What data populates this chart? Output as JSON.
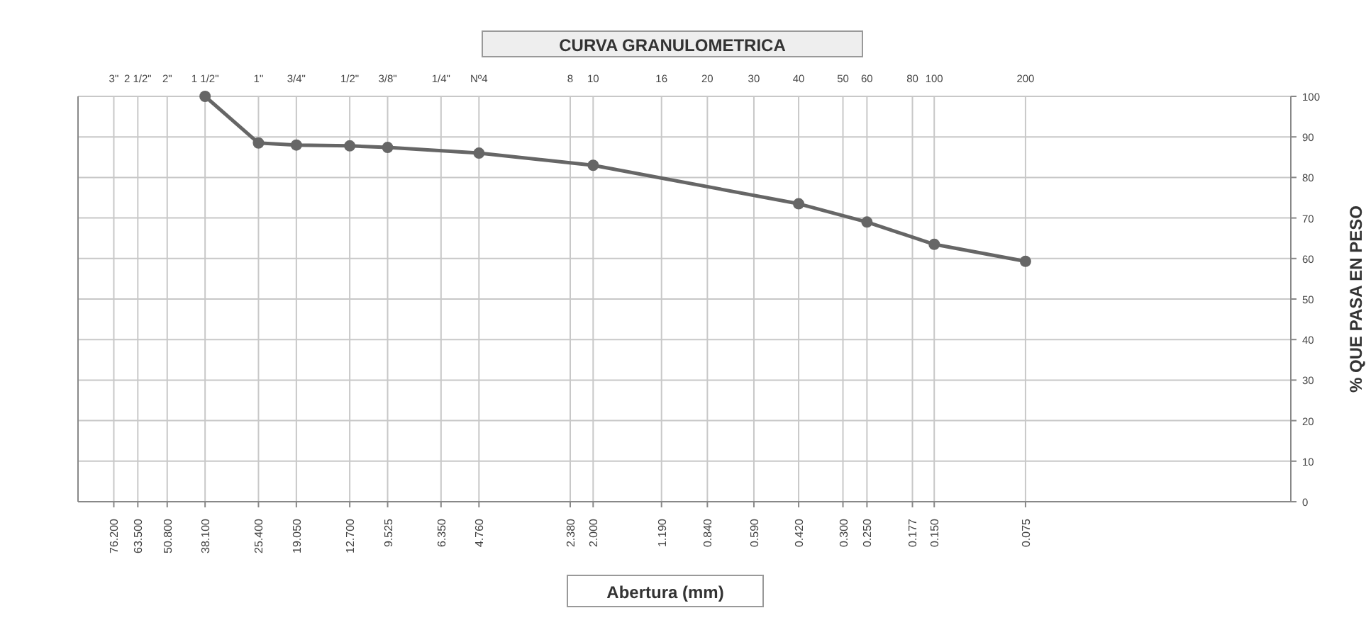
{
  "chart_data": {
    "type": "line",
    "title": "CURVA GRANULOMETRICA",
    "xlabel": "Abertura (mm)",
    "ylabel": "% QUE PASA EN PESO",
    "log": "x",
    "x": [
      38.1,
      25.4,
      19.05,
      12.7,
      9.525,
      4.76,
      2.0,
      0.42,
      0.25,
      0.15,
      0.075
    ],
    "series": [
      {
        "color": "#666666",
        "values": [
          100,
          88.5,
          88,
          87.8,
          87.4,
          86,
          83,
          73.5,
          69,
          63.5,
          59.3
        ]
      }
    ],
    "xlim": [
      100,
      0.01
    ],
    "xticks": [
      {
        "value": 76.2,
        "label": "76.200"
      },
      {
        "value": 63.5,
        "label": "63.500"
      },
      {
        "value": 50.8,
        "label": "50.800"
      },
      {
        "value": 38.1,
        "label": "38.100"
      },
      {
        "value": 25.4,
        "label": "25.400"
      },
      {
        "value": 19.05,
        "label": "19.050"
      },
      {
        "value": 12.7,
        "label": "12.700"
      },
      {
        "value": 9.525,
        "label": "9.525"
      },
      {
        "value": 6.35,
        "label": "6.350"
      },
      {
        "value": 4.76,
        "label": "4.760"
      },
      {
        "value": 2.38,
        "label": "2.380"
      },
      {
        "value": 2.0,
        "label": "2.000"
      },
      {
        "value": 1.19,
        "label": "1.190"
      },
      {
        "value": 0.84,
        "label": "0.840"
      },
      {
        "value": 0.59,
        "label": "0.590"
      },
      {
        "value": 0.42,
        "label": "0.420"
      },
      {
        "value": 0.3,
        "label": "0.300"
      },
      {
        "value": 0.25,
        "label": "0.250"
      },
      {
        "value": 0.177,
        "label": "0.177"
      },
      {
        "value": 0.15,
        "label": "0.150"
      },
      {
        "value": 0.075,
        "label": "0.075"
      }
    ],
    "annotations": [
      "3\"",
      "2 1/2\"",
      "2\"",
      "1 1/2\"",
      "1\"",
      "3/4\"",
      "1/2\"",
      "3/8\"",
      "1/4\"",
      "Nº4",
      "8",
      "10",
      "16",
      "20",
      "30",
      "40",
      "50",
      "60",
      "80",
      "100",
      "200"
    ],
    "ylim": [
      0,
      100
    ],
    "yticks": [
      0,
      10,
      20,
      30,
      40,
      50,
      60,
      70,
      80,
      90,
      100
    ],
    "grid": true,
    "marker": "circle",
    "line_style": "solid"
  }
}
